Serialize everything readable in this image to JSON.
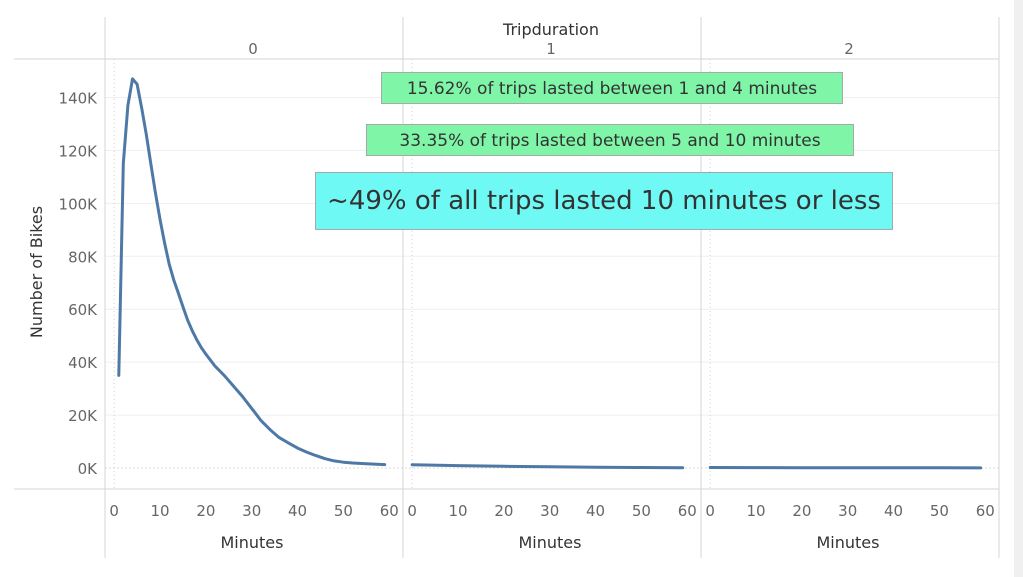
{
  "chart_data": {
    "type": "line",
    "title": "Tripduration",
    "ylabel": "Number of Bikes",
    "ylim": [
      0,
      150000
    ],
    "yticks": [
      0,
      20000,
      40000,
      60000,
      80000,
      100000,
      120000,
      140000
    ],
    "ytick_labels": [
      "0K",
      "20K",
      "40K",
      "60K",
      "80K",
      "100K",
      "120K",
      "140K"
    ],
    "grid": true,
    "line_color": "#4e79a7",
    "panels": [
      {
        "header": "0",
        "xlabel": "Minutes",
        "xlim": [
          -2,
          63
        ],
        "xticks": [
          0,
          10,
          20,
          30,
          40,
          50,
          60
        ],
        "x": [
          1,
          2,
          3,
          4,
          5,
          6,
          7,
          8,
          9,
          10,
          11,
          12,
          13,
          14,
          15,
          16,
          17,
          18,
          19,
          20,
          22,
          24,
          25,
          26,
          28,
          30,
          32,
          34,
          36,
          38,
          40,
          42,
          44,
          46,
          48,
          50,
          52,
          55,
          59
        ],
        "y": [
          35000,
          115000,
          137000,
          147000,
          145000,
          136000,
          126000,
          115000,
          104000,
          94000,
          85000,
          77000,
          71000,
          66000,
          61000,
          56000,
          52000,
          48500,
          45500,
          43000,
          38500,
          35000,
          33000,
          31000,
          27000,
          22500,
          18000,
          14500,
          11500,
          9500,
          7500,
          6000,
          4700,
          3500,
          2700,
          2200,
          1900,
          1600,
          1300
        ]
      },
      {
        "header": "1",
        "xlabel": "Minutes",
        "xlim": [
          -2,
          63
        ],
        "xticks": [
          0,
          10,
          20,
          30,
          40,
          50,
          60
        ],
        "x": [
          0,
          10,
          20,
          30,
          40,
          50,
          59
        ],
        "y": [
          1200,
          900,
          650,
          450,
          300,
          200,
          120
        ]
      },
      {
        "header": "2",
        "xlabel": "Minutes",
        "xlim": [
          -2,
          63
        ],
        "xticks": [
          0,
          10,
          20,
          30,
          40,
          50,
          60
        ],
        "x": [
          0,
          10,
          20,
          30,
          40,
          50,
          59
        ],
        "y": [
          200,
          150,
          120,
          100,
          80,
          60,
          50
        ]
      }
    ],
    "annotations": [
      {
        "text": "15.62% of trips lasted between 1 and 4 minutes",
        "color": "#7ff5a8"
      },
      {
        "text": "33.35% of trips lasted between 5 and 10 minutes",
        "color": "#7ff5a8"
      },
      {
        "text": "~49% of all trips lasted 10 minutes or less",
        "color": "#6ff9f5"
      }
    ]
  }
}
